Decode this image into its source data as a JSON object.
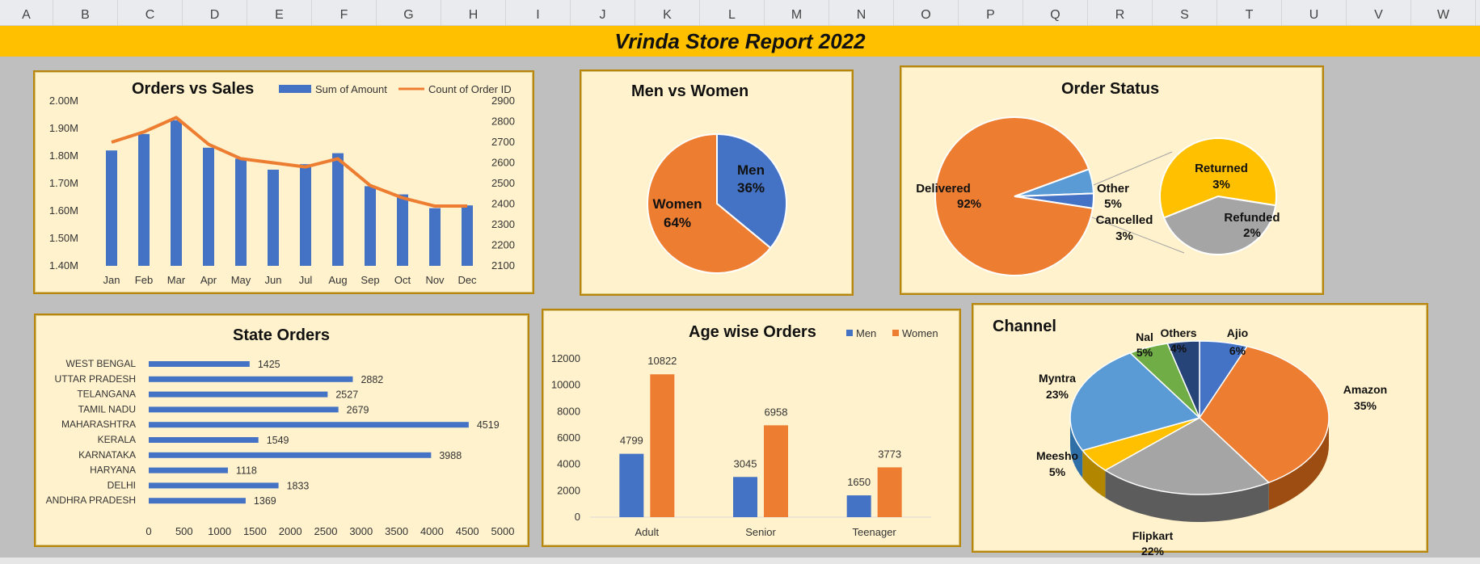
{
  "columns": [
    "A",
    "B",
    "C",
    "D",
    "E",
    "F",
    "G",
    "H",
    "I",
    "J",
    "K",
    "L",
    "M",
    "N",
    "O",
    "P",
    "Q",
    "R",
    "S",
    "T",
    "U",
    "V",
    "W"
  ],
  "banner_title": "Vrinda Store Report 2022",
  "colors": {
    "blue": "#4472c4",
    "orange": "#ed7d31",
    "gray": "#a5a5a5",
    "yellow": "#ffc000",
    "lightblue": "#5b9bd5",
    "green": "#70ad47",
    "navy": "#264478",
    "panel": "#fff2cc",
    "banner": "#ffc000"
  },
  "orders_sales": {
    "title": "Orders vs Sales",
    "legend_bar": "Sum of Amount",
    "legend_line": "Count of Order ID",
    "left_ticks": [
      "2.00M",
      "1.90M",
      "1.80M",
      "1.70M",
      "1.60M",
      "1.50M",
      "1.40M"
    ],
    "right_ticks": [
      "2900",
      "2800",
      "2700",
      "2600",
      "2500",
      "2400",
      "2300",
      "2200",
      "2100"
    ]
  },
  "men_women": {
    "title": "Men vs Women",
    "men_label": "Men",
    "men_pct": "36%",
    "women_label": "Women",
    "women_pct": "64%"
  },
  "order_status": {
    "title": "Order Status",
    "delivered_label": "Delivered",
    "delivered_pct": "92%",
    "other_label": "Other",
    "other_pct": "5%",
    "cancelled_label": "Cancelled",
    "cancelled_pct": "3%",
    "returned_label": "Returned",
    "returned_pct": "3%",
    "refunded_label": "Refunded",
    "refunded_pct": "2%"
  },
  "state_orders": {
    "title": "State Orders",
    "x_ticks": [
      "0",
      "500",
      "1000",
      "1500",
      "2000",
      "2500",
      "3000",
      "3500",
      "4000",
      "4500",
      "5000"
    ]
  },
  "age_orders": {
    "title": "Age wise Orders",
    "legend_men": "Men",
    "legend_women": "Women",
    "y_ticks": [
      "12000",
      "10000",
      "8000",
      "6000",
      "4000",
      "2000",
      "0"
    ]
  },
  "channel": {
    "title": "Channel",
    "slices": [
      {
        "name": "Ajio",
        "pct": "6%"
      },
      {
        "name": "Amazon",
        "pct": "35%"
      },
      {
        "name": "Flipkart",
        "pct": "22%"
      },
      {
        "name": "Meesho",
        "pct": "5%"
      },
      {
        "name": "Myntra",
        "pct": "23%"
      },
      {
        "name": "Nal",
        "pct": "5%"
      },
      {
        "name": "Others",
        "pct": "4%"
      }
    ]
  },
  "chart_data": [
    {
      "type": "bar",
      "title": "Orders vs Sales",
      "categories": [
        "Jan",
        "Feb",
        "Mar",
        "Apr",
        "May",
        "Jun",
        "Jul",
        "Aug",
        "Sep",
        "Oct",
        "Nov",
        "Dec"
      ],
      "series": [
        {
          "name": "Sum of Amount",
          "axis": "left",
          "values": [
            1.82,
            1.88,
            1.93,
            1.83,
            1.79,
            1.75,
            1.77,
            1.81,
            1.69,
            1.66,
            1.61,
            1.62
          ]
        },
        {
          "name": "Count of Order ID",
          "type": "line",
          "axis": "right",
          "values": [
            2700,
            2750,
            2820,
            2690,
            2620,
            2600,
            2580,
            2620,
            2490,
            2430,
            2390,
            2390
          ]
        }
      ],
      "ylim": [
        1.4,
        2.0
      ],
      "y2lim": [
        2100,
        2900
      ]
    },
    {
      "type": "pie",
      "title": "Men vs Women",
      "categories": [
        "Men",
        "Women"
      ],
      "values": [
        36,
        64
      ]
    },
    {
      "type": "pie",
      "title": "Order Status",
      "categories": [
        "Delivered",
        "Other",
        "Cancelled",
        "Returned",
        "Refunded"
      ],
      "values": [
        92,
        5,
        3,
        3,
        2
      ]
    },
    {
      "type": "bar",
      "title": "State Orders",
      "categories": [
        "WEST BENGAL",
        "UTTAR PRADESH",
        "TELANGANA",
        "TAMIL NADU",
        "MAHARASHTRA",
        "KERALA",
        "KARNATAKA",
        "HARYANA",
        "DELHI",
        "ANDHRA PRADESH"
      ],
      "values": [
        1425,
        2882,
        2527,
        2679,
        4519,
        1549,
        3988,
        1118,
        1833,
        1369
      ],
      "xlim": [
        0,
        5000
      ]
    },
    {
      "type": "bar",
      "title": "Age wise Orders",
      "categories": [
        "Adult",
        "Senior",
        "Teenager"
      ],
      "series": [
        {
          "name": "Men",
          "values": [
            4799,
            3045,
            1650
          ]
        },
        {
          "name": "Women",
          "values": [
            10822,
            6958,
            3773
          ]
        }
      ],
      "ylim": [
        0,
        12000
      ]
    },
    {
      "type": "pie",
      "title": "Channel",
      "categories": [
        "Ajio",
        "Amazon",
        "Flipkart",
        "Meesho",
        "Myntra",
        "Nal",
        "Others"
      ],
      "values": [
        6,
        35,
        22,
        5,
        23,
        5,
        4
      ]
    }
  ]
}
